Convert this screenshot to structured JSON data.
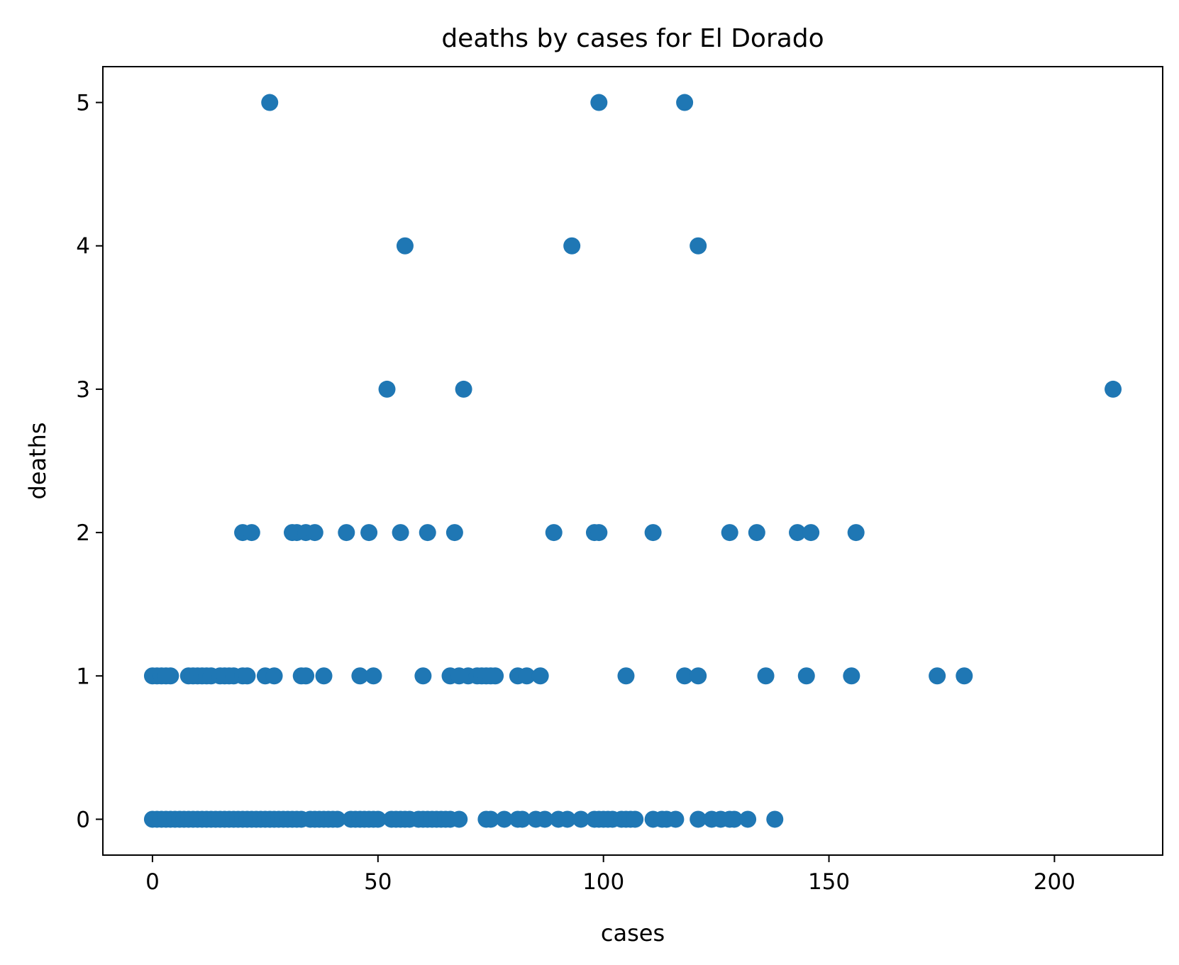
{
  "chart_data": {
    "type": "scatter",
    "title": "deaths by cases for El Dorado",
    "xlabel": "cases",
    "ylabel": "deaths",
    "xlim": [
      -11,
      224
    ],
    "ylim": [
      -0.25,
      5.25
    ],
    "xticks": [
      0,
      50,
      100,
      150,
      200
    ],
    "yticks": [
      0,
      1,
      2,
      3,
      4,
      5
    ],
    "grid": false,
    "legend": "none",
    "marker_color": "#1f77b4",
    "series": [
      {
        "points": [
          [
            26,
            5
          ],
          [
            99,
            5
          ],
          [
            118,
            5
          ],
          [
            56,
            4
          ],
          [
            93,
            4
          ],
          [
            121,
            4
          ],
          [
            52,
            3
          ],
          [
            69,
            3
          ],
          [
            213,
            3
          ],
          [
            20,
            2
          ],
          [
            22,
            2
          ],
          [
            31,
            2
          ],
          [
            32,
            2
          ],
          [
            34,
            2
          ],
          [
            36,
            2
          ],
          [
            43,
            2
          ],
          [
            48,
            2
          ],
          [
            55,
            2
          ],
          [
            61,
            2
          ],
          [
            67,
            2
          ],
          [
            89,
            2
          ],
          [
            98,
            2
          ],
          [
            99,
            2
          ],
          [
            111,
            2
          ],
          [
            128,
            2
          ],
          [
            134,
            2
          ],
          [
            143,
            2
          ],
          [
            146,
            2
          ],
          [
            156,
            2
          ],
          [
            0,
            1
          ],
          [
            1,
            1
          ],
          [
            2,
            1
          ],
          [
            3,
            1
          ],
          [
            4,
            1
          ],
          [
            8,
            1
          ],
          [
            9,
            1
          ],
          [
            10,
            1
          ],
          [
            11,
            1
          ],
          [
            12,
            1
          ],
          [
            13,
            1
          ],
          [
            15,
            1
          ],
          [
            16,
            1
          ],
          [
            17,
            1
          ],
          [
            18,
            1
          ],
          [
            20,
            1
          ],
          [
            21,
            1
          ],
          [
            25,
            1
          ],
          [
            27,
            1
          ],
          [
            33,
            1
          ],
          [
            34,
            1
          ],
          [
            38,
            1
          ],
          [
            46,
            1
          ],
          [
            49,
            1
          ],
          [
            60,
            1
          ],
          [
            66,
            1
          ],
          [
            68,
            1
          ],
          [
            70,
            1
          ],
          [
            72,
            1
          ],
          [
            73,
            1
          ],
          [
            74,
            1
          ],
          [
            75,
            1
          ],
          [
            76,
            1
          ],
          [
            81,
            1
          ],
          [
            83,
            1
          ],
          [
            86,
            1
          ],
          [
            105,
            1
          ],
          [
            118,
            1
          ],
          [
            121,
            1
          ],
          [
            136,
            1
          ],
          [
            145,
            1
          ],
          [
            155,
            1
          ],
          [
            174,
            1
          ],
          [
            180,
            1
          ],
          [
            0,
            0
          ],
          [
            1,
            0
          ],
          [
            2,
            0
          ],
          [
            3,
            0
          ],
          [
            4,
            0
          ],
          [
            5,
            0
          ],
          [
            6,
            0
          ],
          [
            7,
            0
          ],
          [
            8,
            0
          ],
          [
            9,
            0
          ],
          [
            10,
            0
          ],
          [
            11,
            0
          ],
          [
            12,
            0
          ],
          [
            13,
            0
          ],
          [
            14,
            0
          ],
          [
            15,
            0
          ],
          [
            16,
            0
          ],
          [
            17,
            0
          ],
          [
            18,
            0
          ],
          [
            19,
            0
          ],
          [
            20,
            0
          ],
          [
            21,
            0
          ],
          [
            22,
            0
          ],
          [
            23,
            0
          ],
          [
            24,
            0
          ],
          [
            25,
            0
          ],
          [
            26,
            0
          ],
          [
            27,
            0
          ],
          [
            28,
            0
          ],
          [
            29,
            0
          ],
          [
            30,
            0
          ],
          [
            31,
            0
          ],
          [
            32,
            0
          ],
          [
            33,
            0
          ],
          [
            35,
            0
          ],
          [
            36,
            0
          ],
          [
            37,
            0
          ],
          [
            38,
            0
          ],
          [
            39,
            0
          ],
          [
            40,
            0
          ],
          [
            41,
            0
          ],
          [
            44,
            0
          ],
          [
            45,
            0
          ],
          [
            46,
            0
          ],
          [
            47,
            0
          ],
          [
            48,
            0
          ],
          [
            49,
            0
          ],
          [
            50,
            0
          ],
          [
            53,
            0
          ],
          [
            54,
            0
          ],
          [
            55,
            0
          ],
          [
            56,
            0
          ],
          [
            57,
            0
          ],
          [
            59,
            0
          ],
          [
            60,
            0
          ],
          [
            61,
            0
          ],
          [
            62,
            0
          ],
          [
            63,
            0
          ],
          [
            64,
            0
          ],
          [
            65,
            0
          ],
          [
            66,
            0
          ],
          [
            68,
            0
          ],
          [
            74,
            0
          ],
          [
            75,
            0
          ],
          [
            78,
            0
          ],
          [
            81,
            0
          ],
          [
            82,
            0
          ],
          [
            85,
            0
          ],
          [
            87,
            0
          ],
          [
            90,
            0
          ],
          [
            92,
            0
          ],
          [
            95,
            0
          ],
          [
            98,
            0
          ],
          [
            99,
            0
          ],
          [
            100,
            0
          ],
          [
            101,
            0
          ],
          [
            102,
            0
          ],
          [
            104,
            0
          ],
          [
            105,
            0
          ],
          [
            106,
            0
          ],
          [
            107,
            0
          ],
          [
            111,
            0
          ],
          [
            113,
            0
          ],
          [
            114,
            0
          ],
          [
            116,
            0
          ],
          [
            121,
            0
          ],
          [
            124,
            0
          ],
          [
            126,
            0
          ],
          [
            128,
            0
          ],
          [
            129,
            0
          ],
          [
            132,
            0
          ],
          [
            138,
            0
          ]
        ]
      }
    ]
  }
}
